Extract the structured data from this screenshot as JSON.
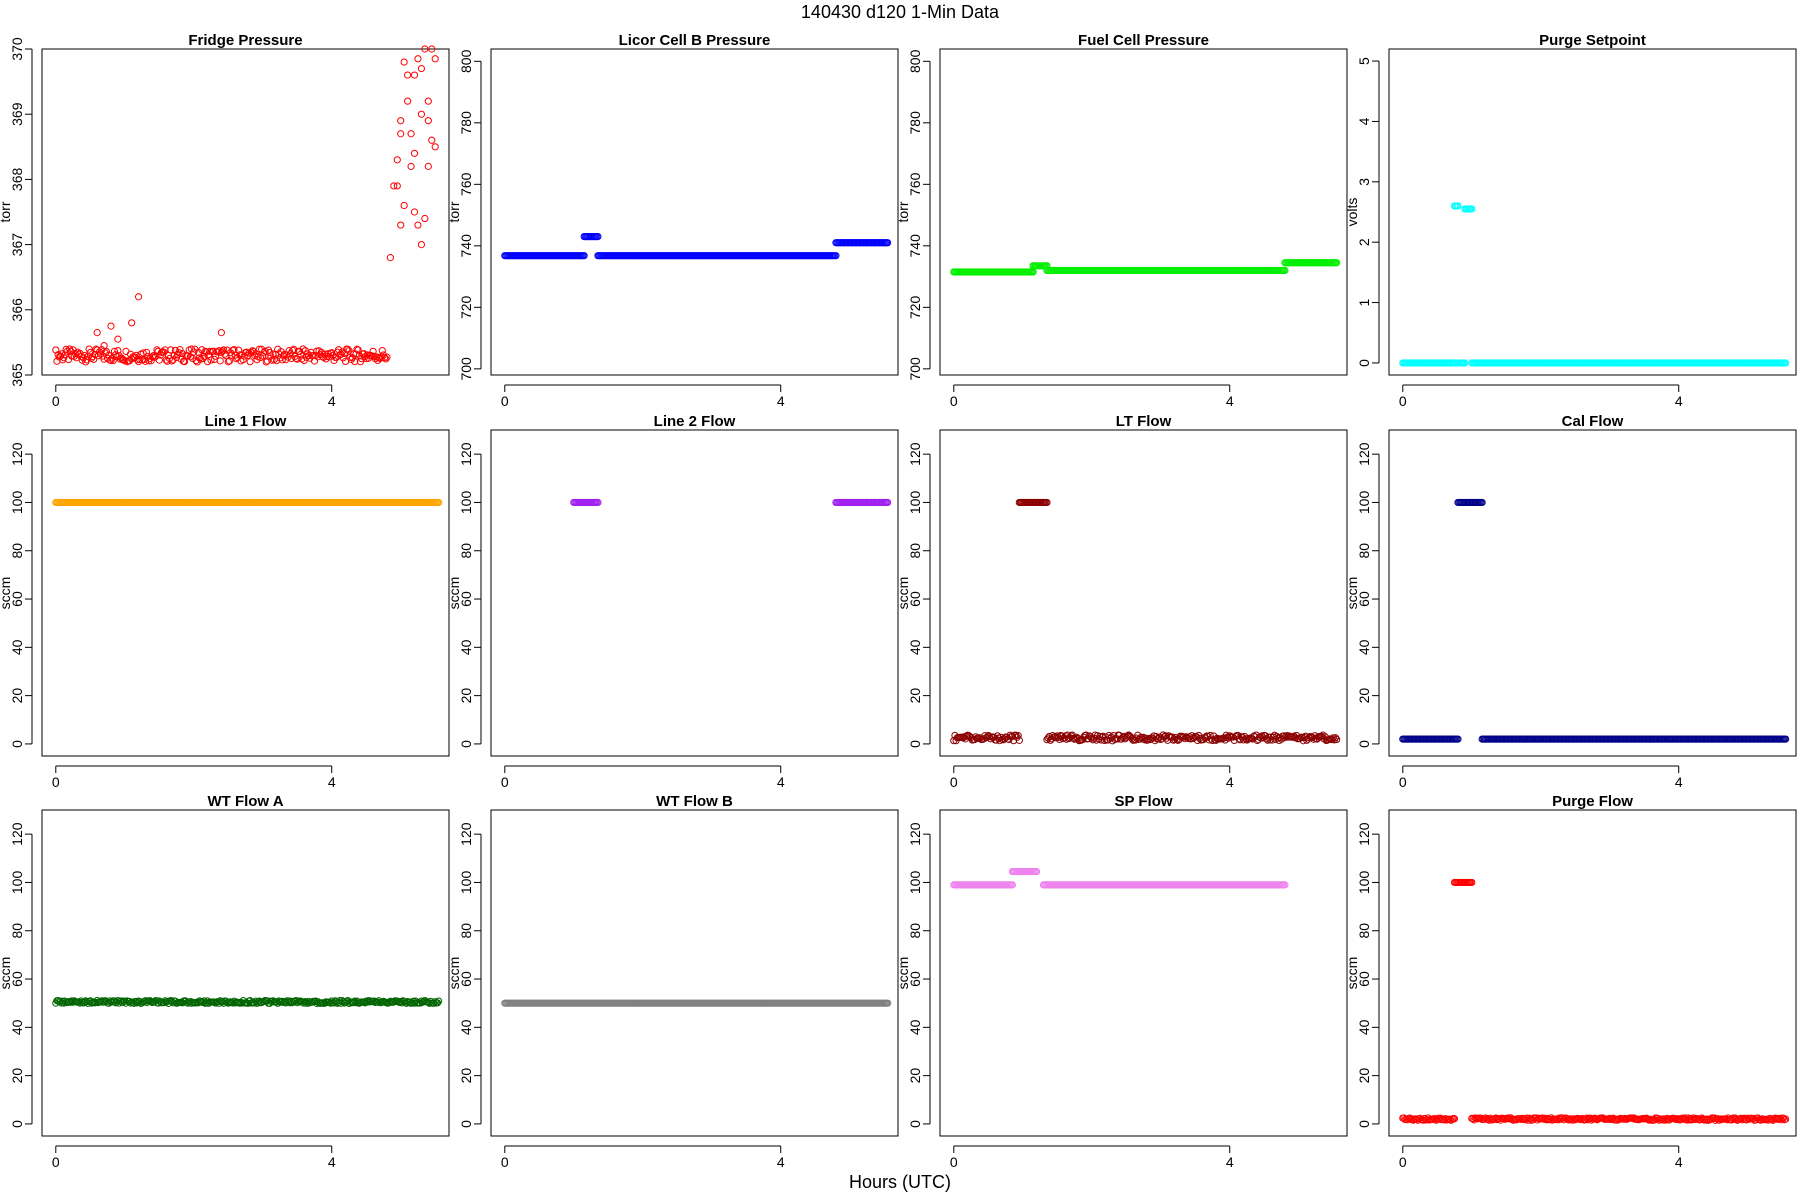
{
  "figure": {
    "title": "140430    d120    1-Min Data",
    "xlabel": "Hours (UTC)"
  },
  "chart_data": [
    {
      "type": "scatter",
      "title": "Fridge Pressure",
      "xlabel": "",
      "ylabel": "torr",
      "xlim": [
        -0.2,
        5.7
      ],
      "xticks": [
        0,
        4
      ],
      "ylim": [
        365,
        370
      ],
      "yticks": [
        365,
        366,
        367,
        368,
        369,
        370
      ],
      "color": "#ff0000",
      "marker": "open-circle",
      "grid": false,
      "series": [
        {
          "x_start": 0.0,
          "x_end": 4.8,
          "y": 365.3,
          "noise": 0.1,
          "points": [
            [
              0.6,
              365.65
            ],
            [
              0.8,
              365.75
            ],
            [
              1.2,
              366.2
            ],
            [
              1.1,
              365.8
            ],
            [
              2.4,
              365.65
            ],
            [
              0.7,
              365.45
            ],
            [
              0.9,
              365.55
            ]
          ]
        },
        {
          "x_start": 4.8,
          "x_end": 5.5,
          "points": [
            [
              4.85,
              366.8
            ],
            [
              4.9,
              367.9
            ],
            [
              4.95,
              368.3
            ],
            [
              5.0,
              368.7
            ],
            [
              5.05,
              369.8
            ],
            [
              5.1,
              369.6
            ],
            [
              5.15,
              368.2
            ],
            [
              5.2,
              367.5
            ],
            [
              5.25,
              369.85
            ],
            [
              5.3,
              369.0
            ],
            [
              5.35,
              367.4
            ],
            [
              5.4,
              368.9
            ],
            [
              5.45,
              370.0
            ],
            [
              5.5,
              368.5
            ],
            [
              5.0,
              368.9
            ],
            [
              5.1,
              369.2
            ],
            [
              5.2,
              368.4
            ],
            [
              5.3,
              369.7
            ],
            [
              5.4,
              368.2
            ],
            [
              5.5,
              369.85
            ],
            [
              4.95,
              367.9
            ],
            [
              5.05,
              367.6
            ],
            [
              5.15,
              368.7
            ],
            [
              5.25,
              367.3
            ],
            [
              5.35,
              370.0
            ],
            [
              5.45,
              368.6
            ],
            [
              5.0,
              367.3
            ],
            [
              5.2,
              369.6
            ],
            [
              5.3,
              367.0
            ],
            [
              5.4,
              369.2
            ]
          ]
        }
      ]
    },
    {
      "type": "scatter",
      "title": "Licor Cell B Pressure",
      "xlabel": "",
      "ylabel": "torr",
      "xlim": [
        -0.2,
        5.7
      ],
      "xticks": [
        0,
        4
      ],
      "ylim": [
        698,
        804
      ],
      "yticks": [
        700,
        720,
        740,
        760,
        780,
        800
      ],
      "color": "#0000ff",
      "marker": "open-circle",
      "grid": false,
      "series": [
        {
          "x_start": 0.0,
          "x_end": 1.15,
          "y": 736.8
        },
        {
          "x_start": 1.15,
          "x_end": 1.35,
          "y": 743.0
        },
        {
          "x_start": 1.35,
          "x_end": 4.8,
          "y": 736.8
        },
        {
          "x_start": 4.8,
          "x_end": 5.55,
          "y": 741.0
        }
      ]
    },
    {
      "type": "scatter",
      "title": "Fuel Cell Pressure",
      "xlabel": "",
      "ylabel": "torr",
      "xlim": [
        -0.2,
        5.7
      ],
      "xticks": [
        0,
        4
      ],
      "ylim": [
        698,
        804
      ],
      "yticks": [
        700,
        720,
        740,
        760,
        780,
        800
      ],
      "color": "#00ee00",
      "marker": "open-circle",
      "grid": false,
      "series": [
        {
          "x_start": 0.0,
          "x_end": 1.15,
          "y": 731.5
        },
        {
          "x_start": 1.15,
          "x_end": 1.35,
          "y": 733.5
        },
        {
          "x_start": 1.35,
          "x_end": 4.8,
          "y": 732.0
        },
        {
          "x_start": 4.8,
          "x_end": 5.55,
          "y": 734.5
        }
      ]
    },
    {
      "type": "scatter",
      "title": "Purge Setpoint",
      "xlabel": "",
      "ylabel": "volts",
      "xlim": [
        -0.2,
        5.7
      ],
      "xticks": [
        0,
        4
      ],
      "ylim": [
        -0.2,
        5.2
      ],
      "yticks": [
        0,
        1,
        2,
        3,
        4,
        5
      ],
      "color": "#00ffff",
      "marker": "open-circle",
      "grid": false,
      "series": [
        {
          "x_start": 0.0,
          "x_end": 0.75,
          "y": 0.0
        },
        {
          "x_start": 0.75,
          "x_end": 0.8,
          "y": 2.6
        },
        {
          "x_start": 0.8,
          "x_end": 0.9,
          "y": 0.0
        },
        {
          "x_start": 0.9,
          "x_end": 1.0,
          "y": 2.55
        },
        {
          "x_start": 1.0,
          "x_end": 5.55,
          "y": 0.0
        }
      ]
    },
    {
      "type": "scatter",
      "title": "Line 1 Flow",
      "xlabel": "",
      "ylabel": "sccm",
      "xlim": [
        -0.2,
        5.7
      ],
      "xticks": [
        0,
        4
      ],
      "ylim": [
        -5,
        130
      ],
      "yticks": [
        0,
        20,
        40,
        60,
        80,
        100,
        120
      ],
      "color": "#ffa500",
      "marker": "open-circle",
      "grid": false,
      "series": [
        {
          "x_start": 0.0,
          "x_end": 5.55,
          "y": 100.0
        }
      ]
    },
    {
      "type": "scatter",
      "title": "Line 2 Flow",
      "xlabel": "",
      "ylabel": "sccm",
      "xlim": [
        -0.2,
        5.7
      ],
      "xticks": [
        0,
        4
      ],
      "ylim": [
        -5,
        130
      ],
      "yticks": [
        0,
        20,
        40,
        60,
        80,
        100,
        120
      ],
      "color": "#a020f0",
      "marker": "open-circle",
      "grid": false,
      "series": [
        {
          "x_start": 1.0,
          "x_end": 1.35,
          "y": 100.0
        },
        {
          "x_start": 4.8,
          "x_end": 5.55,
          "y": 100.0
        }
      ]
    },
    {
      "type": "scatter",
      "title": "LT Flow",
      "xlabel": "",
      "ylabel": "sccm",
      "xlim": [
        -0.2,
        5.7
      ],
      "xticks": [
        0,
        4
      ],
      "ylim": [
        -5,
        130
      ],
      "yticks": [
        0,
        20,
        40,
        60,
        80,
        100,
        120
      ],
      "color": "#8b0000",
      "marker": "open-circle",
      "grid": false,
      "series": [
        {
          "x_start": 0.0,
          "x_end": 0.95,
          "y": 2.5,
          "noise": 1.2
        },
        {
          "x_start": 0.95,
          "x_end": 1.35,
          "y": 100.0
        },
        {
          "x_start": 1.35,
          "x_end": 5.55,
          "y": 2.5,
          "noise": 1.2
        }
      ]
    },
    {
      "type": "scatter",
      "title": "Cal Flow",
      "xlabel": "",
      "ylabel": "sccm",
      "xlim": [
        -0.2,
        5.7
      ],
      "xticks": [
        0,
        4
      ],
      "ylim": [
        -5,
        130
      ],
      "yticks": [
        0,
        20,
        40,
        60,
        80,
        100,
        120
      ],
      "color": "#00008b",
      "marker": "open-circle",
      "grid": false,
      "series": [
        {
          "x_start": 0.0,
          "x_end": 0.8,
          "y": 2.0
        },
        {
          "x_start": 0.8,
          "x_end": 1.15,
          "y": 100.0
        },
        {
          "x_start": 1.15,
          "x_end": 5.55,
          "y": 2.0
        }
      ]
    },
    {
      "type": "scatter",
      "title": "WT Flow A",
      "xlabel": "",
      "ylabel": "sccm",
      "xlim": [
        -0.2,
        5.7
      ],
      "xticks": [
        0,
        4
      ],
      "ylim": [
        -5,
        130
      ],
      "yticks": [
        0,
        20,
        40,
        60,
        80,
        100,
        120
      ],
      "color": "#006400",
      "marker": "open-circle",
      "grid": false,
      "series": [
        {
          "x_start": 0.0,
          "x_end": 5.55,
          "y": 50.5,
          "noise": 0.6
        }
      ]
    },
    {
      "type": "scatter",
      "title": "WT Flow B",
      "xlabel": "",
      "ylabel": "sccm",
      "xlim": [
        -0.2,
        5.7
      ],
      "xticks": [
        0,
        4
      ],
      "ylim": [
        -5,
        130
      ],
      "yticks": [
        0,
        20,
        40,
        60,
        80,
        100,
        120
      ],
      "color": "#808080",
      "marker": "open-circle",
      "grid": false,
      "series": [
        {
          "x_start": 0.0,
          "x_end": 5.55,
          "y": 50.0
        }
      ]
    },
    {
      "type": "scatter",
      "title": "SP Flow",
      "xlabel": "",
      "ylabel": "sccm",
      "xlim": [
        -0.2,
        5.7
      ],
      "xticks": [
        0,
        4
      ],
      "ylim": [
        -5,
        130
      ],
      "yticks": [
        0,
        20,
        40,
        60,
        80,
        100,
        120
      ],
      "color": "#ee82ee",
      "marker": "open-circle",
      "grid": false,
      "series": [
        {
          "x_start": 0.0,
          "x_end": 0.85,
          "y": 99.0
        },
        {
          "x_start": 0.85,
          "x_end": 1.2,
          "y": 104.5
        },
        {
          "x_start": 1.3,
          "x_end": 4.8,
          "y": 99.0
        }
      ]
    },
    {
      "type": "scatter",
      "title": "Purge Flow",
      "xlabel": "",
      "ylabel": "sccm",
      "xlim": [
        -0.2,
        5.7
      ],
      "xticks": [
        0,
        4
      ],
      "ylim": [
        -5,
        130
      ],
      "yticks": [
        0,
        20,
        40,
        60,
        80,
        100,
        120
      ],
      "color": "#ff0000",
      "marker": "open-circle",
      "grid": false,
      "series": [
        {
          "x_start": 0.0,
          "x_end": 0.75,
          "y": 2.0,
          "noise": 0.5
        },
        {
          "x_start": 0.75,
          "x_end": 1.0,
          "y": 100.0
        },
        {
          "x_start": 1.0,
          "x_end": 5.55,
          "y": 2.0,
          "noise": 0.5
        }
      ]
    }
  ]
}
